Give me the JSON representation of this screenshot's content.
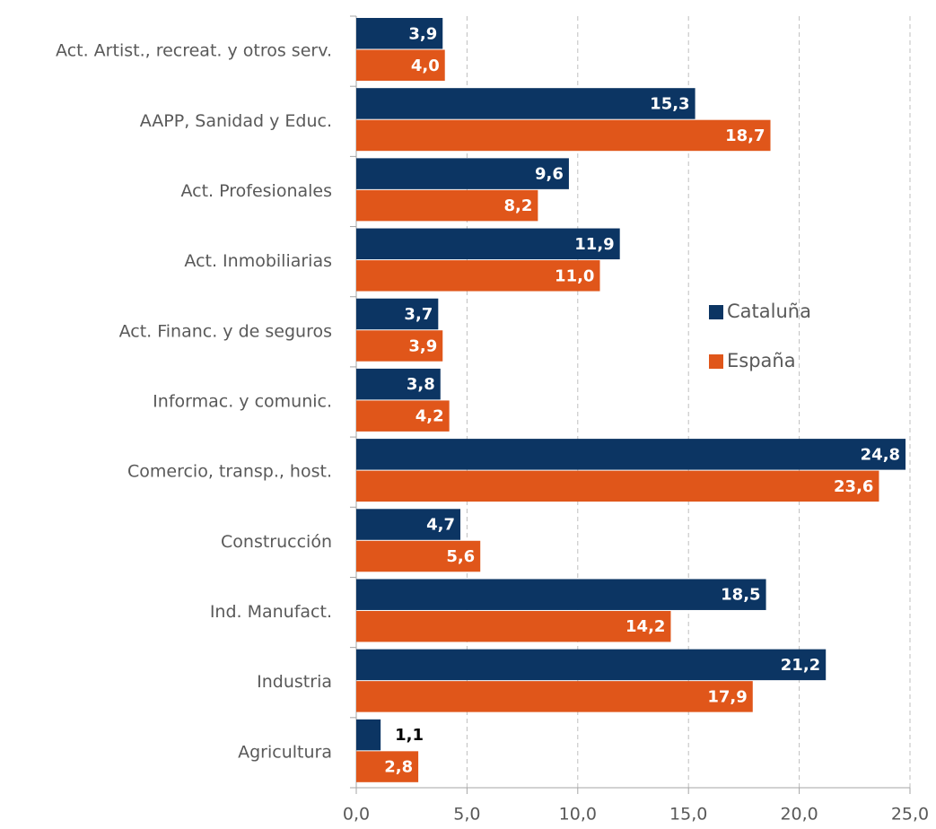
{
  "chart_data": {
    "type": "bar",
    "orientation": "horizontal",
    "categories": [
      "Act. Artist., recreat. y otros serv.",
      "AAPP, Sanidad y Educ.",
      "Act. Profesionales",
      "Act. Inmobiliarias",
      "Act. Financ. y de seguros",
      "Informac. y comunic.",
      "Comercio, transp., host.",
      "Construcción",
      "Ind. Manufact.",
      "Industria",
      "Agricultura"
    ],
    "series": [
      {
        "name": "Cataluña",
        "color": "#0c3563",
        "values": [
          3.9,
          15.3,
          9.6,
          11.9,
          3.7,
          3.8,
          24.8,
          4.7,
          18.5,
          21.2,
          1.1
        ],
        "value_labels": [
          "3,9",
          "15,3",
          "9,6",
          "11,9",
          "3,7",
          "3,8",
          "24,8",
          "4,7",
          "18,5",
          "21,2",
          "1,1"
        ]
      },
      {
        "name": "España",
        "color": "#e0561a",
        "values": [
          4.0,
          18.7,
          8.2,
          11.0,
          3.9,
          4.2,
          23.6,
          5.6,
          14.2,
          17.9,
          2.8
        ],
        "value_labels": [
          "4,0",
          "18,7",
          "8,2",
          "11,0",
          "3,9",
          "4,2",
          "23,6",
          "5,6",
          "14,2",
          "17,9",
          "2,8"
        ]
      }
    ],
    "xlim": [
      0,
      25
    ],
    "xticks": [
      {
        "value": 0,
        "label": "0,0"
      },
      {
        "value": 5,
        "label": "5,0"
      },
      {
        "value": 10,
        "label": "10,0"
      },
      {
        "value": 15,
        "label": "15,0"
      },
      {
        "value": 20,
        "label": "20,0"
      },
      {
        "value": 25,
        "label": "25,0"
      }
    ],
    "grid": true,
    "legend": "right"
  }
}
